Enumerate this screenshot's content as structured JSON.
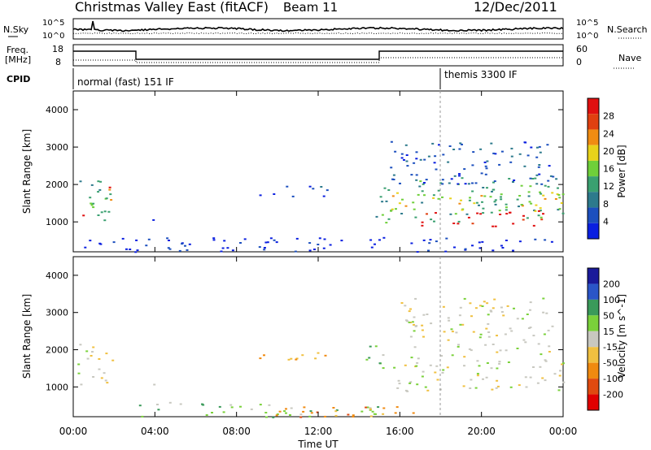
{
  "header": {
    "title": "Christmas Valley East (fitACF)",
    "beam": "Beam 11",
    "date": "12/Dec/2011"
  },
  "strips": {
    "nsky_label": "N.Sky",
    "nsky_ticks": [
      "10^5",
      "10^0"
    ],
    "nsearch_label": "N.Search",
    "freq_label_1": "Freq.",
    "freq_label_2": "[MHz]",
    "freq_ticks": [
      "18",
      "8"
    ],
    "nave_label": "Nave",
    "nave_ticks": [
      "60",
      "0"
    ],
    "cpid_label": "CPID",
    "cpid_left": "normal (fast) 151 IF",
    "cpid_right": "themis 3300 IF"
  },
  "colors": {
    "power": [
      "#0a1fe0",
      "#1c4fbe",
      "#2d7a8c",
      "#3aa070",
      "#6fcf3a",
      "#e8d21a",
      "#f08c12",
      "#e04010",
      "#e01010"
    ],
    "velocity": [
      "#1a1a9a",
      "#2a55c8",
      "#3a9a5a",
      "#7ad13a",
      "#c8c8c0",
      "#f0c040",
      "#f08a10",
      "#e04a10",
      "#e00000"
    ],
    "ground_scatter": "#c0c0b8"
  },
  "chart_data": [
    {
      "type": "heatmap",
      "name": "power-panel",
      "ylabel": "Slant Range [km]",
      "xlabel": "",
      "ylim": [
        200,
        4500
      ],
      "y_ticks": [
        1000,
        2000,
        3000,
        4000
      ],
      "x_ticks": [
        "00:00",
        "04:00",
        "08:00",
        "12:00",
        "16:00",
        "20:00",
        "00:00"
      ],
      "colorbar_label": "Power [dB]",
      "colorbar_ticks": [
        "4",
        "8",
        "12",
        "16",
        "20",
        "24",
        "28"
      ],
      "regions": [
        {
          "x": [
            0.3,
            2.0
          ],
          "y": [
            1000,
            2200
          ],
          "level": 3
        },
        {
          "x": [
            1.0,
            1.8
          ],
          "y": [
            1500,
            2000
          ],
          "level": 7
        },
        {
          "x": [
            0.2,
            0.6
          ],
          "y": [
            1100,
            1500
          ],
          "level": 8
        },
        {
          "x": [
            3.6,
            4.0
          ],
          "y": [
            1000,
            1300
          ],
          "level": 1
        },
        {
          "x": [
            9.0,
            12.5
          ],
          "y": [
            1700,
            2000
          ],
          "level": 1
        },
        {
          "x": [
            14.8,
            24.0
          ],
          "y": [
            1000,
            2200
          ],
          "level": 3
        },
        {
          "x": [
            15.5,
            24.0
          ],
          "y": [
            1300,
            1800
          ],
          "level": 5
        },
        {
          "x": [
            17.0,
            23.5
          ],
          "y": [
            900,
            1400
          ],
          "level": 8
        },
        {
          "x": [
            15.5,
            23.5
          ],
          "y": [
            2000,
            3200
          ],
          "level": 1
        },
        {
          "x": [
            0.5,
            23.5
          ],
          "y": [
            200,
            600
          ],
          "level": 0
        }
      ]
    },
    {
      "type": "heatmap",
      "name": "velocity-panel",
      "ylabel": "Slant Range [km]",
      "xlabel": "Time UT",
      "ylim": [
        200,
        4500
      ],
      "y_ticks": [
        1000,
        2000,
        3000,
        4000
      ],
      "x_ticks": [
        "00:00",
        "04:00",
        "08:00",
        "12:00",
        "16:00",
        "20:00",
        "00:00"
      ],
      "colorbar_label": "Velocity [m s^-1]",
      "colorbar_ticks": [
        "200",
        "100",
        "50",
        "15",
        "-15",
        "-50",
        "-100",
        "-200"
      ],
      "regions": [
        {
          "x": [
            0.0,
            2.0
          ],
          "y": [
            1000,
            2200
          ],
          "level": 4
        },
        {
          "x": [
            3.6,
            4.0
          ],
          "y": [
            1000,
            1300
          ],
          "level": 4
        },
        {
          "x": [
            9.0,
            12.5
          ],
          "y": [
            1700,
            2000
          ],
          "level": 5
        },
        {
          "x": [
            14.3,
            15.2
          ],
          "y": [
            1300,
            2500
          ],
          "level": 3
        },
        {
          "x": [
            15.5,
            24.0
          ],
          "y": [
            900,
            2000
          ],
          "level": 4
        },
        {
          "x": [
            16.0,
            23.5
          ],
          "y": [
            2000,
            3400
          ],
          "level": 4
        },
        {
          "x": [
            3.0,
            15.0
          ],
          "y": [
            200,
            600
          ],
          "level": 3
        },
        {
          "x": [
            9.0,
            17.0
          ],
          "y": [
            200,
            500
          ],
          "level": 6
        }
      ]
    }
  ]
}
